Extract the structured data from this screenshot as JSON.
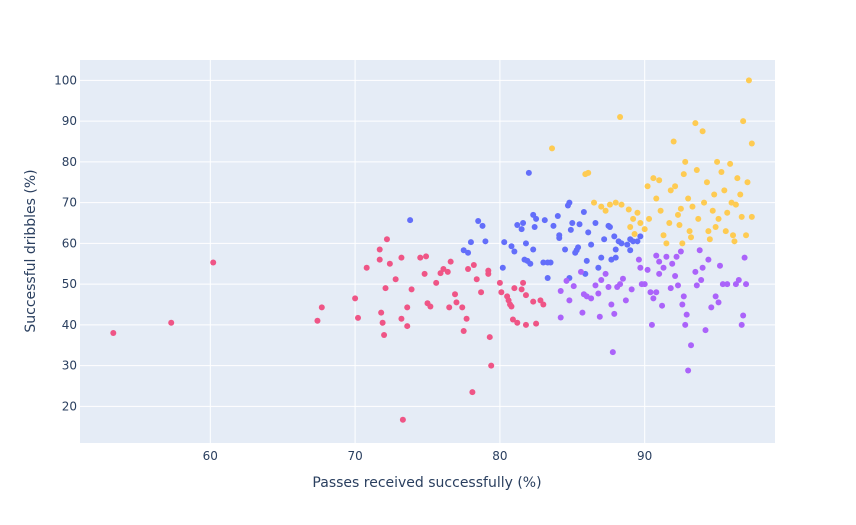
{
  "chart_data": {
    "type": "scatter",
    "title": "",
    "xlabel": "Passes received successfully (%)",
    "ylabel": "Successful dribbles (%)",
    "xlim": [
      51,
      99
    ],
    "ylim": [
      11,
      105
    ],
    "x_ticks": [
      60,
      70,
      80,
      90
    ],
    "y_ticks": [
      20,
      30,
      40,
      50,
      60,
      70,
      80,
      90,
      100
    ],
    "grid": true,
    "legend": "none",
    "colors": {
      "plot_background": "#e5ecf6",
      "grid": "#ffffff",
      "text": "#2a3f5f"
    },
    "series": [
      {
        "color": "#ef5586",
        "points": [
          [
            53.3,
            38
          ],
          [
            57.3,
            40.5
          ],
          [
            60.2,
            55.3
          ],
          [
            67.4,
            41
          ],
          [
            67.7,
            44.3
          ],
          [
            70.0,
            46.5
          ],
          [
            70.2,
            41.7
          ],
          [
            70.8,
            54.0
          ],
          [
            71.7,
            58.5
          ],
          [
            71.7,
            56.0
          ],
          [
            71.8,
            43.0
          ],
          [
            71.9,
            40.5
          ],
          [
            72.0,
            37.5
          ],
          [
            72.1,
            49.0
          ],
          [
            72.2,
            61.0
          ],
          [
            72.4,
            55.0
          ],
          [
            72.8,
            51.2
          ],
          [
            73.2,
            56.5
          ],
          [
            73.2,
            41.5
          ],
          [
            73.3,
            16.7
          ],
          [
            73.6,
            44.3
          ],
          [
            73.6,
            39.7
          ],
          [
            73.9,
            48.7
          ],
          [
            74.5,
            56.5
          ],
          [
            74.8,
            52.5
          ],
          [
            74.9,
            56.8
          ],
          [
            75.0,
            45.3
          ],
          [
            75.2,
            44.5
          ],
          [
            75.6,
            50.3
          ],
          [
            75.9,
            52.7
          ],
          [
            76.1,
            53.7
          ],
          [
            76.4,
            53.0
          ],
          [
            76.5,
            44.3
          ],
          [
            76.6,
            55.5
          ],
          [
            76.9,
            47.5
          ],
          [
            77.0,
            45.5
          ],
          [
            77.4,
            44.3
          ],
          [
            77.5,
            38.5
          ],
          [
            77.8,
            53.7
          ],
          [
            77.7,
            41.5
          ],
          [
            78.1,
            23.5
          ],
          [
            78.2,
            54.7
          ],
          [
            78.4,
            51.2
          ],
          [
            78.7,
            48.0
          ],
          [
            79.2,
            53.3
          ],
          [
            79.2,
            52.5
          ],
          [
            79.3,
            37.0
          ],
          [
            79.4,
            30.0
          ],
          [
            80.0,
            50.3
          ],
          [
            80.1,
            48.0
          ],
          [
            80.5,
            47.0
          ],
          [
            80.6,
            46.0
          ],
          [
            80.7,
            45.0
          ],
          [
            80.8,
            44.5
          ],
          [
            80.9,
            41.3
          ],
          [
            81.0,
            49.0
          ],
          [
            81.2,
            40.5
          ],
          [
            81.5,
            48.7
          ],
          [
            81.6,
            50.3
          ],
          [
            81.8,
            47.3
          ],
          [
            81.8,
            40.0
          ],
          [
            82.3,
            45.7
          ],
          [
            82.5,
            40.3
          ],
          [
            82.8,
            46.0
          ],
          [
            83.0,
            45.0
          ]
        ]
      },
      {
        "color": "#636efa",
        "points": [
          [
            73.8,
            65.7
          ],
          [
            77.5,
            58.3
          ],
          [
            77.8,
            57.7
          ],
          [
            78.0,
            60.3
          ],
          [
            78.5,
            65.5
          ],
          [
            78.8,
            64.3
          ],
          [
            79.0,
            60.5
          ],
          [
            80.2,
            54.0
          ],
          [
            80.3,
            60.3
          ],
          [
            80.8,
            59.3
          ],
          [
            81.0,
            58.0
          ],
          [
            81.2,
            64.5
          ],
          [
            81.5,
            63.5
          ],
          [
            81.6,
            65.0
          ],
          [
            81.7,
            56.0
          ],
          [
            81.8,
            60.0
          ],
          [
            81.9,
            55.7
          ],
          [
            82.0,
            77.3
          ],
          [
            82.1,
            55.0
          ],
          [
            82.3,
            58.5
          ],
          [
            82.3,
            67.0
          ],
          [
            82.4,
            64.0
          ],
          [
            82.5,
            66.0
          ],
          [
            83.0,
            55.3
          ],
          [
            83.1,
            65.7
          ],
          [
            83.3,
            51.5
          ],
          [
            83.5,
            55.3
          ],
          [
            83.7,
            64.3
          ],
          [
            84.0,
            66.7
          ],
          [
            84.1,
            62.0
          ],
          [
            84.1,
            61.3
          ],
          [
            84.5,
            58.5
          ],
          [
            84.7,
            69.3
          ],
          [
            84.8,
            70.0
          ],
          [
            84.9,
            63.3
          ],
          [
            84.8,
            51.5
          ],
          [
            85.0,
            65.0
          ],
          [
            85.2,
            57.7
          ],
          [
            85.3,
            58.3
          ],
          [
            85.4,
            59.0
          ],
          [
            85.5,
            64.7
          ],
          [
            85.8,
            67.7
          ],
          [
            85.9,
            52.5
          ],
          [
            86.1,
            62.7
          ],
          [
            86.3,
            59.7
          ],
          [
            86.6,
            65.0
          ],
          [
            86.8,
            54.0
          ],
          [
            87.0,
            56.5
          ],
          [
            87.2,
            61.0
          ],
          [
            87.5,
            64.3
          ],
          [
            87.6,
            64.0
          ],
          [
            87.7,
            56.0
          ],
          [
            87.9,
            61.7
          ],
          [
            88.0,
            58.5
          ],
          [
            88.2,
            60.5
          ],
          [
            88.4,
            60.0
          ],
          [
            88.8,
            59.7
          ],
          [
            89.0,
            61.0
          ],
          [
            89.2,
            60.5
          ],
          [
            89.5,
            60.5
          ],
          [
            89.7,
            61.7
          ],
          [
            83.3,
            55.3
          ],
          [
            86.0,
            55.7
          ],
          [
            88.0,
            56.5
          ],
          [
            89.0,
            58.3
          ]
        ]
      },
      {
        "color": "#ab63fa",
        "points": [
          [
            84.2,
            48.3
          ],
          [
            84.2,
            41.8
          ],
          [
            84.6,
            50.8
          ],
          [
            84.8,
            46.0
          ],
          [
            85.1,
            49.5
          ],
          [
            85.6,
            53.0
          ],
          [
            85.7,
            43.0
          ],
          [
            85.8,
            47.5
          ],
          [
            86.0,
            47.0
          ],
          [
            86.3,
            46.5
          ],
          [
            86.6,
            49.7
          ],
          [
            86.8,
            47.7
          ],
          [
            86.9,
            42.0
          ],
          [
            87.0,
            51.0
          ],
          [
            87.3,
            52.5
          ],
          [
            87.5,
            49.3
          ],
          [
            87.7,
            45.0
          ],
          [
            87.8,
            33.3
          ],
          [
            87.9,
            42.7
          ],
          [
            88.1,
            49.3
          ],
          [
            88.3,
            50.0
          ],
          [
            88.5,
            51.3
          ],
          [
            88.7,
            46.0
          ],
          [
            89.1,
            48.7
          ],
          [
            89.6,
            56.0
          ],
          [
            89.7,
            54.0
          ],
          [
            89.8,
            50.0
          ],
          [
            90.0,
            50.0
          ],
          [
            90.2,
            53.5
          ],
          [
            90.4,
            48.0
          ],
          [
            90.5,
            40.0
          ],
          [
            90.6,
            46.5
          ],
          [
            90.8,
            57.0
          ],
          [
            90.8,
            48.0
          ],
          [
            91.0,
            52.5
          ],
          [
            91.2,
            44.7
          ],
          [
            91.3,
            54.0
          ],
          [
            91.5,
            56.7
          ],
          [
            91.8,
            49.0
          ],
          [
            91.9,
            55.0
          ],
          [
            92.1,
            52.0
          ],
          [
            92.2,
            56.7
          ],
          [
            92.3,
            49.7
          ],
          [
            92.5,
            58.0
          ],
          [
            92.6,
            45.0
          ],
          [
            92.7,
            47.0
          ],
          [
            92.8,
            40.0
          ],
          [
            92.9,
            42.5
          ],
          [
            93.0,
            28.8
          ],
          [
            93.2,
            35.0
          ],
          [
            93.5,
            53.0
          ],
          [
            93.6,
            49.7
          ],
          [
            93.9,
            51.0
          ],
          [
            94.0,
            54.0
          ],
          [
            94.2,
            38.7
          ],
          [
            94.4,
            56.0
          ],
          [
            94.6,
            44.3
          ],
          [
            94.9,
            47.0
          ],
          [
            95.1,
            45.5
          ],
          [
            95.2,
            54.5
          ],
          [
            95.4,
            50.0
          ],
          [
            95.7,
            50.0
          ],
          [
            96.3,
            50.0
          ],
          [
            96.5,
            51.0
          ],
          [
            96.7,
            40.0
          ],
          [
            96.8,
            42.3
          ],
          [
            96.9,
            56.5
          ],
          [
            97.0,
            50.0
          ],
          [
            91.0,
            55.5
          ],
          [
            93.8,
            58.3
          ]
        ]
      },
      {
        "color": "#fecb52",
        "points": [
          [
            83.6,
            83.3
          ],
          [
            85.9,
            77.0
          ],
          [
            86.1,
            77.3
          ],
          [
            86.5,
            70.0
          ],
          [
            87.0,
            69.0
          ],
          [
            87.3,
            68.0
          ],
          [
            87.6,
            69.5
          ],
          [
            88.0,
            70.0
          ],
          [
            88.3,
            91.0
          ],
          [
            88.4,
            69.5
          ],
          [
            88.9,
            68.3
          ],
          [
            89.0,
            64.0
          ],
          [
            89.2,
            66.0
          ],
          [
            89.3,
            62.3
          ],
          [
            89.5,
            67.5
          ],
          [
            89.7,
            65.0
          ],
          [
            90.0,
            63.5
          ],
          [
            90.2,
            74.0
          ],
          [
            90.3,
            66.0
          ],
          [
            90.6,
            76.0
          ],
          [
            90.8,
            71.0
          ],
          [
            91.0,
            75.5
          ],
          [
            91.1,
            68.0
          ],
          [
            91.3,
            62.0
          ],
          [
            91.5,
            60.0
          ],
          [
            91.7,
            65.0
          ],
          [
            91.8,
            73.0
          ],
          [
            92.0,
            85.0
          ],
          [
            92.1,
            74.0
          ],
          [
            92.3,
            67.0
          ],
          [
            92.5,
            68.5
          ],
          [
            92.6,
            60.0
          ],
          [
            92.7,
            77.0
          ],
          [
            92.8,
            80.0
          ],
          [
            93.0,
            71.0
          ],
          [
            93.1,
            63.0
          ],
          [
            93.3,
            69.0
          ],
          [
            93.5,
            89.5
          ],
          [
            93.6,
            78.0
          ],
          [
            93.7,
            66.0
          ],
          [
            94.0,
            87.5
          ],
          [
            94.1,
            70.0
          ],
          [
            94.3,
            75.0
          ],
          [
            94.4,
            63.0
          ],
          [
            94.5,
            61.0
          ],
          [
            94.7,
            68.0
          ],
          [
            94.8,
            72.0
          ],
          [
            95.0,
            80.0
          ],
          [
            95.1,
            66.0
          ],
          [
            95.3,
            77.5
          ],
          [
            95.5,
            73.0
          ],
          [
            95.6,
            63.0
          ],
          [
            95.7,
            67.5
          ],
          [
            95.9,
            79.5
          ],
          [
            96.0,
            70.0
          ],
          [
            96.1,
            62.0
          ],
          [
            96.2,
            60.5
          ],
          [
            96.3,
            69.5
          ],
          [
            96.4,
            76.0
          ],
          [
            96.6,
            72.0
          ],
          [
            96.7,
            66.5
          ],
          [
            96.8,
            90.0
          ],
          [
            97.0,
            62.0
          ],
          [
            97.1,
            75.0
          ],
          [
            97.2,
            100.0
          ],
          [
            97.4,
            84.5
          ],
          [
            97.4,
            66.5
          ],
          [
            92.4,
            64.5
          ],
          [
            93.2,
            61.5
          ],
          [
            94.9,
            64.0
          ]
        ]
      }
    ]
  }
}
